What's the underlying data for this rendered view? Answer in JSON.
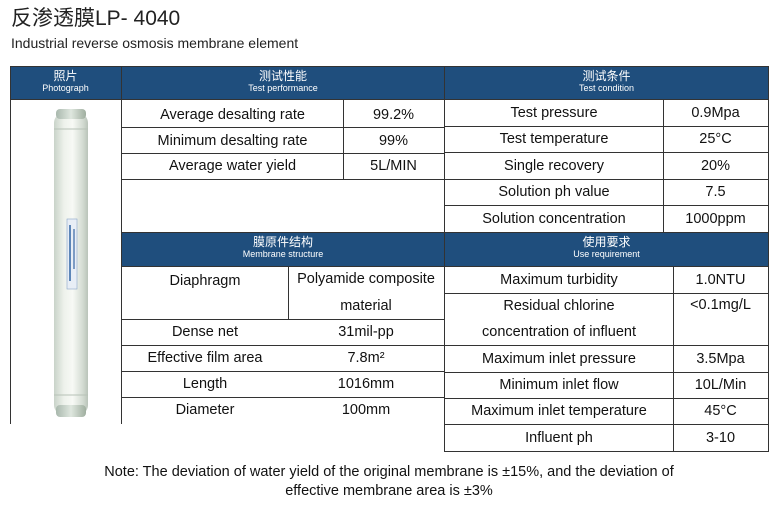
{
  "title": "反渗透膜LP- 4040",
  "subtitle": "Industrial reverse osmosis membrane element",
  "photo_header": {
    "zh": "照片",
    "en": "Photograph"
  },
  "performance_header": {
    "zh": "测试性能",
    "en": "Test performance"
  },
  "condition_header": {
    "zh": "测试条件",
    "en": "Test condition"
  },
  "structure_header": {
    "zh": "膜原件结构",
    "en": "Membrane structure"
  },
  "requirement_header": {
    "zh": "使用要求",
    "en": "Use requirement"
  },
  "performance": [
    {
      "label": "Average desalting rate",
      "value": "99.2%"
    },
    {
      "label": "Minimum desalting rate",
      "value": "99%"
    },
    {
      "label": "Average water yield",
      "value": "5L/MIN"
    }
  ],
  "conditions": [
    {
      "label": "Test pressure",
      "value": "0.9Mpa"
    },
    {
      "label": "Test temperature",
      "value": "25°C"
    },
    {
      "label": "Single recovery",
      "value": "20%"
    },
    {
      "label": "Solution ph value",
      "value": "7.5"
    },
    {
      "label": "Solution concentration",
      "value": "1000ppm"
    }
  ],
  "structure": [
    {
      "label": "Diaphragm",
      "value_line1": "Polyamide composite",
      "value_line2": "material"
    },
    {
      "label": "Dense net",
      "value": "31mil-pp"
    },
    {
      "label": "Effective film area",
      "value": "7.8m²"
    },
    {
      "label": "Length",
      "value": "1016mm"
    },
    {
      "label": "Diameter",
      "value": "100mm"
    }
  ],
  "requirements": [
    {
      "label": "Maximum turbidity",
      "value": "1.0NTU"
    },
    {
      "label_line1": "Residual chlorine",
      "label_line2": "concentration of influent",
      "value": "<0.1mg/L"
    },
    {
      "label": "Maximum inlet pressure",
      "value": "3.5Mpa"
    },
    {
      "label": "Minimum inlet flow",
      "value": "10L/Min"
    },
    {
      "label": "Maximum inlet temperature",
      "value": "45°C"
    },
    {
      "label": "Influent ph",
      "value": "3-10"
    }
  ],
  "note_line1": "Note: The deviation of water yield of the original membrane is ±15%, and the deviation of",
  "note_line2": "effective membrane area is ±3%",
  "colors": {
    "header_bg": "#1f4e7d",
    "header_text": "#ffffff",
    "rule": "#333333"
  }
}
